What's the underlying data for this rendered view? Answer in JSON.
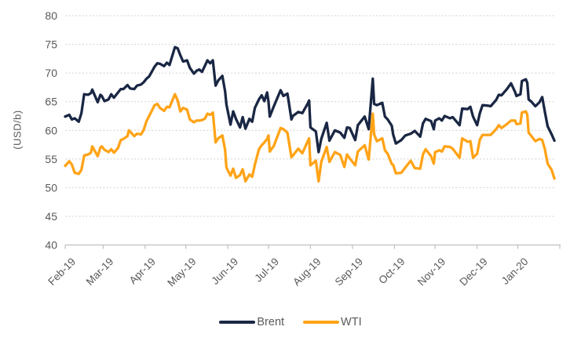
{
  "chart_data": {
    "type": "line",
    "title": "",
    "xlabel": "",
    "ylabel": "(USD/b)",
    "ylim": [
      40,
      80
    ],
    "y_ticks": [
      40,
      45,
      50,
      55,
      60,
      65,
      70,
      75,
      80
    ],
    "x_labels": [
      "Feb-19",
      "Mar-19",
      "Apr-19",
      "May-19",
      "Jun-19",
      "Jul-19",
      "Aug-19",
      "Sep-19",
      "Oct-19",
      "Nov-19",
      "Dec-19",
      "Jan-20"
    ],
    "month_start_days": [
      0,
      28,
      59,
      89,
      120,
      150,
      181,
      212,
      243,
      273,
      304,
      334
    ],
    "month_tick_days": [
      0,
      28,
      59,
      89,
      120,
      150,
      181,
      212,
      243,
      273,
      304,
      334,
      365
    ],
    "x_span_days": 365,
    "grid_on": true,
    "legend_position": "bottom",
    "colors": {
      "brent": "#1a2744",
      "wti": "#ffa317",
      "axis": "#bfbfbf",
      "grid": "#d0d0d0",
      "text": "#595959"
    },
    "series": [
      {
        "name": "Brent",
        "color": "#1a2744",
        "points": [
          [
            0,
            62.4
          ],
          [
            3,
            62.7
          ],
          [
            5,
            61.9
          ],
          [
            7,
            62.1
          ],
          [
            10,
            61.5
          ],
          [
            12,
            63.0
          ],
          [
            14,
            66.3
          ],
          [
            17,
            66.2
          ],
          [
            19,
            66.5
          ],
          [
            20,
            67.1
          ],
          [
            24,
            64.9
          ],
          [
            26,
            66.2
          ],
          [
            27,
            66.0
          ],
          [
            29,
            65.1
          ],
          [
            32,
            65.4
          ],
          [
            34,
            66.3
          ],
          [
            36,
            65.7
          ],
          [
            39,
            66.6
          ],
          [
            41,
            67.2
          ],
          [
            43,
            67.2
          ],
          [
            46,
            67.9
          ],
          [
            48,
            67.3
          ],
          [
            51,
            67.2
          ],
          [
            53,
            67.8
          ],
          [
            56,
            68.0
          ],
          [
            58,
            68.4
          ],
          [
            60,
            69.0
          ],
          [
            62,
            69.4
          ],
          [
            66,
            71.1
          ],
          [
            68,
            71.7
          ],
          [
            70,
            71.6
          ],
          [
            73,
            71.2
          ],
          [
            75,
            71.8
          ],
          [
            77,
            71.4
          ],
          [
            81,
            74.5
          ],
          [
            83,
            74.3
          ],
          [
            85,
            73.1
          ],
          [
            87,
            72.0
          ],
          [
            90,
            72.2
          ],
          [
            92,
            70.9
          ],
          [
            95,
            69.9
          ],
          [
            97,
            70.4
          ],
          [
            99,
            70.6
          ],
          [
            101,
            70.2
          ],
          [
            103,
            71.2
          ],
          [
            105,
            72.2
          ],
          [
            107,
            71.7
          ],
          [
            109,
            72.2
          ],
          [
            111,
            67.8
          ],
          [
            113,
            68.7
          ],
          [
            116,
            69.5
          ],
          [
            118,
            66.8
          ],
          [
            119,
            64.5
          ],
          [
            122,
            61.0
          ],
          [
            124,
            63.3
          ],
          [
            126,
            62.0
          ],
          [
            129,
            60.5
          ],
          [
            131,
            62.3
          ],
          [
            133,
            60.3
          ],
          [
            136,
            62.0
          ],
          [
            138,
            61.5
          ],
          [
            140,
            63.9
          ],
          [
            143,
            65.4
          ],
          [
            145,
            66.1
          ],
          [
            147,
            65.1
          ],
          [
            149,
            66.6
          ],
          [
            150,
            65.1
          ],
          [
            151,
            62.4
          ],
          [
            154,
            64.2
          ],
          [
            159,
            67.0
          ],
          [
            161,
            66.0
          ],
          [
            164,
            66.4
          ],
          [
            167,
            61.9
          ],
          [
            168,
            62.5
          ],
          [
            172,
            63.2
          ],
          [
            175,
            63.0
          ],
          [
            179,
            64.7
          ],
          [
            180,
            65.2
          ],
          [
            181,
            60.5
          ],
          [
            185,
            59.8
          ],
          [
            187,
            56.2
          ],
          [
            189,
            58.5
          ],
          [
            193,
            61.3
          ],
          [
            195,
            58.2
          ],
          [
            199,
            60.0
          ],
          [
            203,
            59.6
          ],
          [
            206,
            58.7
          ],
          [
            208,
            60.5
          ],
          [
            210,
            60.4
          ],
          [
            214,
            58.3
          ],
          [
            216,
            60.9
          ],
          [
            221,
            62.4
          ],
          [
            224,
            60.2
          ],
          [
            227,
            69.0
          ],
          [
            228,
            64.6
          ],
          [
            230,
            64.4
          ],
          [
            234,
            64.8
          ],
          [
            236,
            62.4
          ],
          [
            238,
            61.9
          ],
          [
            241,
            60.8
          ],
          [
            242,
            59.3
          ],
          [
            244,
            57.7
          ],
          [
            248,
            58.3
          ],
          [
            251,
            59.1
          ],
          [
            255,
            59.4
          ],
          [
            258,
            59.9
          ],
          [
            262,
            58.9
          ],
          [
            264,
            61.2
          ],
          [
            266,
            62.0
          ],
          [
            270,
            61.6
          ],
          [
            272,
            60.2
          ],
          [
            273,
            61.7
          ],
          [
            276,
            62.1
          ],
          [
            278,
            61.7
          ],
          [
            280,
            62.5
          ],
          [
            284,
            62.1
          ],
          [
            286,
            62.3
          ],
          [
            291,
            60.9
          ],
          [
            293,
            63.8
          ],
          [
            297,
            63.7
          ],
          [
            299,
            64.1
          ],
          [
            301,
            62.4
          ],
          [
            304,
            60.9
          ],
          [
            306,
            63.0
          ],
          [
            308,
            64.4
          ],
          [
            312,
            64.3
          ],
          [
            314,
            64.2
          ],
          [
            318,
            65.3
          ],
          [
            320,
            66.2
          ],
          [
            322,
            66.1
          ],
          [
            326,
            67.2
          ],
          [
            329,
            68.2
          ],
          [
            332,
            66.7
          ],
          [
            333,
            66.0
          ],
          [
            336,
            66.3
          ],
          [
            337,
            68.6
          ],
          [
            340,
            68.9
          ],
          [
            341,
            68.3
          ],
          [
            342,
            65.4
          ],
          [
            344,
            65.0
          ],
          [
            347,
            64.2
          ],
          [
            350,
            64.9
          ],
          [
            352,
            65.8
          ],
          [
            354,
            63.2
          ],
          [
            356,
            60.7
          ],
          [
            359,
            59.3
          ],
          [
            361,
            58.2
          ]
        ]
      },
      {
        "name": "WTI",
        "color": "#ffa317",
        "points": [
          [
            0,
            53.8
          ],
          [
            3,
            54.6
          ],
          [
            5,
            54.0
          ],
          [
            7,
            52.6
          ],
          [
            10,
            52.4
          ],
          [
            12,
            53.1
          ],
          [
            14,
            55.6
          ],
          [
            17,
            55.8
          ],
          [
            19,
            56.1
          ],
          [
            20,
            57.2
          ],
          [
            24,
            55.5
          ],
          [
            26,
            57.0
          ],
          [
            27,
            57.2
          ],
          [
            29,
            56.6
          ],
          [
            32,
            56.2
          ],
          [
            34,
            56.7
          ],
          [
            36,
            56.1
          ],
          [
            39,
            56.9
          ],
          [
            41,
            58.3
          ],
          [
            43,
            58.5
          ],
          [
            46,
            59.0
          ],
          [
            47,
            60.0
          ],
          [
            51,
            59.0
          ],
          [
            53,
            59.4
          ],
          [
            56,
            59.3
          ],
          [
            58,
            60.1
          ],
          [
            60,
            61.6
          ],
          [
            62,
            62.5
          ],
          [
            66,
            64.4
          ],
          [
            68,
            64.6
          ],
          [
            70,
            63.9
          ],
          [
            73,
            63.4
          ],
          [
            75,
            64.1
          ],
          [
            77,
            64.0
          ],
          [
            81,
            66.3
          ],
          [
            83,
            65.2
          ],
          [
            85,
            63.3
          ],
          [
            87,
            63.9
          ],
          [
            90,
            63.6
          ],
          [
            92,
            61.9
          ],
          [
            95,
            61.4
          ],
          [
            97,
            61.7
          ],
          [
            99,
            61.7
          ],
          [
            101,
            61.8
          ],
          [
            103,
            62.0
          ],
          [
            105,
            62.9
          ],
          [
            107,
            62.7
          ],
          [
            109,
            63.1
          ],
          [
            111,
            57.9
          ],
          [
            113,
            58.6
          ],
          [
            116,
            59.1
          ],
          [
            118,
            56.6
          ],
          [
            119,
            53.5
          ],
          [
            122,
            52.1
          ],
          [
            124,
            53.3
          ],
          [
            126,
            51.7
          ],
          [
            129,
            52.2
          ],
          [
            131,
            53.2
          ],
          [
            133,
            51.1
          ],
          [
            136,
            52.3
          ],
          [
            138,
            51.9
          ],
          [
            140,
            54.0
          ],
          [
            143,
            56.7
          ],
          [
            145,
            57.4
          ],
          [
            147,
            57.9
          ],
          [
            149,
            58.5
          ],
          [
            150,
            59.1
          ],
          [
            151,
            56.3
          ],
          [
            154,
            57.3
          ],
          [
            159,
            60.4
          ],
          [
            161,
            60.2
          ],
          [
            164,
            59.6
          ],
          [
            167,
            55.3
          ],
          [
            168,
            55.6
          ],
          [
            172,
            56.8
          ],
          [
            175,
            56.0
          ],
          [
            179,
            58.1
          ],
          [
            180,
            58.6
          ],
          [
            181,
            53.9
          ],
          [
            185,
            54.7
          ],
          [
            187,
            51.1
          ],
          [
            189,
            54.5
          ],
          [
            193,
            57.1
          ],
          [
            195,
            54.5
          ],
          [
            199,
            56.2
          ],
          [
            203,
            55.7
          ],
          [
            206,
            53.6
          ],
          [
            208,
            55.8
          ],
          [
            210,
            55.1
          ],
          [
            214,
            53.9
          ],
          [
            216,
            56.3
          ],
          [
            221,
            57.4
          ],
          [
            224,
            54.9
          ],
          [
            227,
            62.9
          ],
          [
            228,
            59.3
          ],
          [
            230,
            58.1
          ],
          [
            234,
            58.6
          ],
          [
            236,
            56.5
          ],
          [
            238,
            55.9
          ],
          [
            241,
            54.1
          ],
          [
            242,
            54.0
          ],
          [
            244,
            52.5
          ],
          [
            248,
            52.6
          ],
          [
            251,
            53.5
          ],
          [
            255,
            54.7
          ],
          [
            258,
            53.4
          ],
          [
            262,
            53.3
          ],
          [
            264,
            55.8
          ],
          [
            266,
            56.7
          ],
          [
            270,
            55.5
          ],
          [
            272,
            54.2
          ],
          [
            273,
            56.2
          ],
          [
            276,
            56.5
          ],
          [
            278,
            56.3
          ],
          [
            280,
            57.2
          ],
          [
            284,
            57.1
          ],
          [
            286,
            56.8
          ],
          [
            291,
            55.2
          ],
          [
            293,
            58.6
          ],
          [
            297,
            58.0
          ],
          [
            299,
            58.1
          ],
          [
            301,
            55.2
          ],
          [
            304,
            55.9
          ],
          [
            306,
            58.4
          ],
          [
            308,
            59.2
          ],
          [
            312,
            59.2
          ],
          [
            314,
            59.2
          ],
          [
            318,
            60.2
          ],
          [
            320,
            60.9
          ],
          [
            322,
            60.4
          ],
          [
            326,
            61.1
          ],
          [
            329,
            61.7
          ],
          [
            332,
            61.7
          ],
          [
            333,
            61.1
          ],
          [
            336,
            61.2
          ],
          [
            337,
            63.1
          ],
          [
            340,
            63.3
          ],
          [
            341,
            62.7
          ],
          [
            342,
            59.6
          ],
          [
            344,
            59.0
          ],
          [
            347,
            58.1
          ],
          [
            350,
            58.5
          ],
          [
            352,
            58.3
          ],
          [
            354,
            56.7
          ],
          [
            356,
            54.2
          ],
          [
            359,
            53.1
          ],
          [
            361,
            51.6
          ]
        ]
      }
    ]
  }
}
